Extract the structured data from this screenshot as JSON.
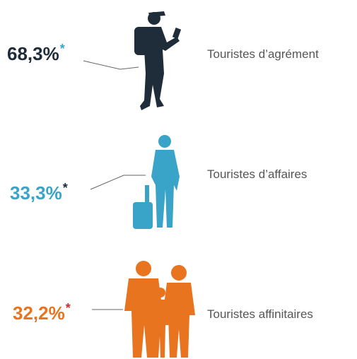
{
  "items": [
    {
      "value": "68,3%",
      "asterisk": "*",
      "label": "Touristes d’agrément",
      "color": "#1f2d3a",
      "asterisk_color": "#3aa3c8"
    },
    {
      "value": "33,3%",
      "asterisk": "*",
      "label": "Touristes d’affaires",
      "color": "#3aa3c8",
      "asterisk_color": "#1f2d3a"
    },
    {
      "value": "32,2%",
      "asterisk": "*",
      "label": "Touristes affinitaires",
      "color": "#e8741f",
      "asterisk_color": "#d42a2a"
    }
  ]
}
